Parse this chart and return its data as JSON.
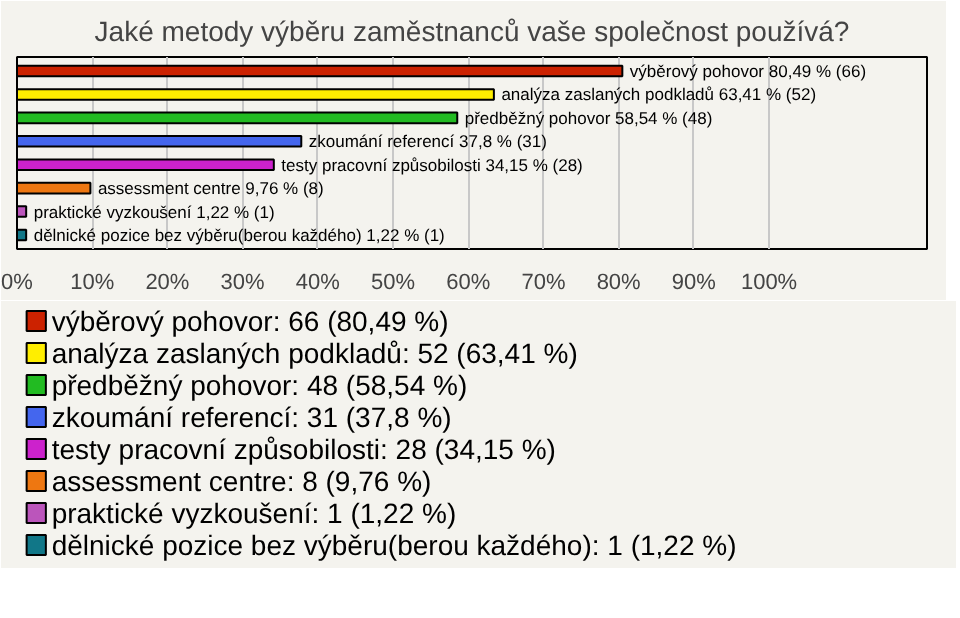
{
  "chart_data": {
    "type": "bar",
    "orientation": "horizontal",
    "title": "Jaké metody výběru zaměstnanců vaše společnost používá?",
    "categories": [
      "výběrový pohovor",
      "analýza zaslaných podkladů",
      "předběžný pohovor",
      "zkoumání referencí",
      "testy pracovní způsobilosti",
      "assessment centre",
      "praktické vyzkoušení",
      "dělnické pozice bez výběru(berou každého)"
    ],
    "series": [
      {
        "name": "výběrový pohovor: 66 (80,49 %)",
        "color": "#cc2200",
        "values": [
          80.49,
          null,
          null,
          null,
          null,
          null,
          null,
          null
        ],
        "value_labels": [
          "80,49 % (66)",
          null,
          null,
          null,
          null,
          null,
          null,
          null
        ]
      },
      {
        "name": "analýza zaslaných podkladů: 52 (63,41 %)",
        "color": "#ffee00",
        "values": [
          null,
          63.41,
          null,
          null,
          null,
          null,
          null,
          null
        ],
        "value_labels": [
          null,
          "63,41 % (52)",
          null,
          null,
          null,
          null,
          null,
          null
        ]
      },
      {
        "name": "předběžný pohovor: 48 (58,54 %)",
        "color": "#22bb22",
        "values": [
          null,
          null,
          58.54,
          null,
          null,
          null,
          null,
          null
        ],
        "value_labels": [
          null,
          null,
          "58,54 % (48)",
          null,
          null,
          null,
          null,
          null
        ]
      },
      {
        "name": "zkoumání referencí: 31 (37,8 %)",
        "color": "#4466ee",
        "values": [
          null,
          null,
          null,
          37.8,
          null,
          null,
          null,
          null
        ],
        "value_labels": [
          null,
          null,
          null,
          "37,8 % (31)",
          null,
          null,
          null,
          null
        ]
      },
      {
        "name": "testy pracovní způsobilosti: 28 (34,15 %)",
        "color": "#cc22cc",
        "values": [
          null,
          null,
          null,
          null,
          34.15,
          null,
          null,
          null
        ],
        "value_labels": [
          null,
          null,
          null,
          null,
          "34,15 % (28)",
          null,
          null,
          null
        ]
      },
      {
        "name": "assessment centre: 8 (9,76 %)",
        "color": "#ee7711",
        "values": [
          null,
          null,
          null,
          null,
          null,
          9.76,
          null,
          null
        ],
        "value_labels": [
          null,
          null,
          null,
          null,
          null,
          "9,76 % (8)",
          null,
          null
        ]
      },
      {
        "name": "praktické vyzkoušení: 1 (1,22 %)",
        "color": "#bb55bb",
        "values": [
          null,
          null,
          null,
          null,
          null,
          null,
          1.22,
          null
        ],
        "value_labels": [
          null,
          null,
          null,
          null,
          null,
          null,
          "1,22 % (1)",
          null
        ]
      },
      {
        "name": "dělnické pozice bez výběru(berou každého): 1 (1,22 %)",
        "color": "#117788",
        "values": [
          null,
          null,
          null,
          null,
          null,
          null,
          null,
          1.22
        ],
        "value_labels": [
          null,
          null,
          null,
          null,
          null,
          null,
          null,
          "1,22 % (1)"
        ]
      }
    ],
    "xlim": [
      0,
      121
    ],
    "xticks": [
      {
        "value": 0,
        "label": "0%"
      },
      {
        "value": 10,
        "label": "10%"
      },
      {
        "value": 20,
        "label": "20%"
      },
      {
        "value": 30,
        "label": "30%"
      },
      {
        "value": 40,
        "label": "40%"
      },
      {
        "value": 50,
        "label": "50%"
      },
      {
        "value": 60,
        "label": "60%"
      },
      {
        "value": 70,
        "label": "70%"
      },
      {
        "value": 80,
        "label": "80%"
      },
      {
        "value": 90,
        "label": "90%"
      },
      {
        "value": 100,
        "label": "100%"
      }
    ],
    "tick_labels": "x",
    "grid": "x",
    "legend": "bottom"
  }
}
